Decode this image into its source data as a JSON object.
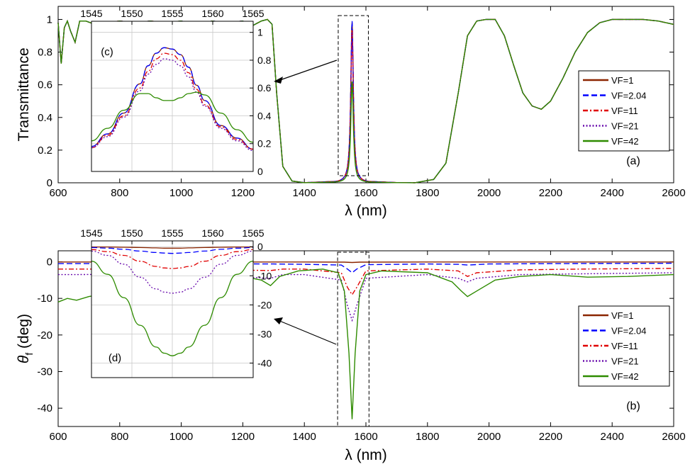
{
  "chart_data": [
    {
      "type": "line",
      "panel_label": "(a)",
      "ylabel": "Transmittance",
      "xlabel": "λ (nm)",
      "xlim": [
        600,
        2600
      ],
      "ylim": [
        0,
        1.08
      ],
      "xticks": [
        600,
        800,
        1000,
        1200,
        1400,
        1600,
        1800,
        2000,
        2200,
        2400,
        2600
      ],
      "yticks": [
        0,
        0.2,
        0.4,
        0.6,
        0.8,
        1
      ],
      "legend_position": "right",
      "series": [
        {
          "name": "VF=1",
          "color": "#8B2500",
          "dash": "solid",
          "peak": 0.98
        },
        {
          "name": "VF=2.04",
          "color": "#0000FF",
          "dash": "dashed",
          "peak": 0.99
        },
        {
          "name": "VF=11",
          "color": "#E00000",
          "dash": "dashdot",
          "peak": 0.94
        },
        {
          "name": "VF=21",
          "color": "#6A0DAD",
          "dash": "dotted",
          "peak": 0.92
        },
        {
          "name": "VF=42",
          "color": "#2E8B00",
          "dash": "solid",
          "peak": 0.62
        }
      ],
      "shared_curve": {
        "x": [
          600,
          610,
          620,
          630,
          640,
          655,
          670,
          690,
          720,
          760,
          800,
          850,
          900,
          950,
          1000,
          1050,
          1100,
          1150,
          1200,
          1230,
          1260,
          1280,
          1295,
          1310,
          1330,
          1360,
          1400,
          1500,
          1600,
          1700,
          1760,
          1820,
          1860,
          1900,
          1930,
          1960,
          1990,
          2020,
          2050,
          2080,
          2110,
          2140,
          2170,
          2200,
          2240,
          2280,
          2320,
          2360,
          2400,
          2450,
          2500,
          2550,
          2600
        ],
        "y": [
          0.98,
          0.73,
          0.95,
          0.99,
          0.93,
          0.86,
          0.99,
          0.99,
          0.97,
          0.98,
          0.99,
          0.98,
          0.99,
          0.98,
          0.99,
          0.97,
          0.99,
          0.98,
          0.99,
          0.96,
          0.99,
          1.0,
          0.97,
          0.55,
          0.1,
          0.01,
          0.0,
          0.0,
          0.0,
          0.0,
          0.0,
          0.02,
          0.12,
          0.55,
          0.9,
          0.99,
          1.0,
          1.0,
          0.9,
          0.72,
          0.55,
          0.47,
          0.45,
          0.5,
          0.64,
          0.8,
          0.92,
          0.98,
          1.0,
          1.0,
          1.0,
          0.99,
          0.97
        ]
      },
      "inset": {
        "label": "(c)",
        "xlim": [
          1545,
          1565
        ],
        "ylim": [
          0,
          1.08
        ],
        "xticks": [
          1545,
          1550,
          1555,
          1560,
          1565
        ],
        "yticks": [
          0,
          0.2,
          0.4,
          0.6,
          0.8,
          1
        ],
        "x": [
          1545,
          1547,
          1549,
          1551,
          1552,
          1553,
          1554,
          1555,
          1556,
          1557,
          1558,
          1559,
          1561,
          1563,
          1565
        ],
        "series": [
          {
            "name": "VF=1",
            "y": [
              0.18,
              0.27,
              0.42,
              0.63,
              0.76,
              0.85,
              0.89,
              0.88,
              0.84,
              0.75,
              0.62,
              0.51,
              0.33,
              0.24,
              0.16
            ]
          },
          {
            "name": "VF=2.04",
            "y": [
              0.18,
              0.27,
              0.42,
              0.63,
              0.76,
              0.85,
              0.89,
              0.88,
              0.84,
              0.75,
              0.62,
              0.51,
              0.33,
              0.24,
              0.16
            ]
          },
          {
            "name": "VF=11",
            "y": [
              0.17,
              0.26,
              0.4,
              0.6,
              0.72,
              0.81,
              0.85,
              0.84,
              0.8,
              0.71,
              0.59,
              0.48,
              0.32,
              0.23,
              0.16
            ]
          },
          {
            "name": "VF=21",
            "y": [
              0.17,
              0.25,
              0.39,
              0.58,
              0.7,
              0.77,
              0.81,
              0.8,
              0.76,
              0.68,
              0.57,
              0.47,
              0.31,
              0.22,
              0.15
            ]
          },
          {
            "name": "VF=42",
            "y": [
              0.22,
              0.31,
              0.44,
              0.56,
              0.56,
              0.53,
              0.51,
              0.51,
              0.53,
              0.56,
              0.57,
              0.55,
              0.42,
              0.3,
              0.21
            ]
          }
        ]
      }
    },
    {
      "type": "line",
      "panel_label": "(b)",
      "ylabel_main": "θ",
      "ylabel_sub": "f",
      "ylabel_unit": " (deg)",
      "xlabel": "λ (nm)",
      "xlim": [
        600,
        2600
      ],
      "ylim": [
        -45,
        3
      ],
      "xticks": [
        600,
        800,
        1000,
        1200,
        1400,
        1600,
        1800,
        2000,
        2200,
        2400,
        2600
      ],
      "yticks": [
        0,
        -10,
        -20,
        -30,
        -40
      ],
      "legend_position": "right",
      "series": [
        {
          "name": "VF=1",
          "color": "#8B2500",
          "dash": "solid",
          "x": [
            600,
            1000,
            1400,
            1530,
            1555,
            1580,
            1800,
            2200,
            2600
          ],
          "y": [
            -0.05,
            -0.05,
            -0.06,
            -0.1,
            -0.2,
            -0.1,
            -0.05,
            -0.05,
            -0.05
          ]
        },
        {
          "name": "VF=2.04",
          "color": "#0000FF",
          "dash": "dashed",
          "x": [
            600,
            1000,
            1300,
            1400,
            1520,
            1540,
            1555,
            1570,
            1600,
            1800,
            1900,
            1930,
            2000,
            2200,
            2600
          ],
          "y": [
            -0.5,
            -0.5,
            -0.6,
            -0.7,
            -0.9,
            -2.0,
            -3.0,
            -2.0,
            -0.8,
            -0.6,
            -0.7,
            -0.9,
            -0.6,
            -0.5,
            -0.4
          ]
        },
        {
          "name": "VF=11",
          "color": "#E00000",
          "dash": "dashdot",
          "x": [
            600,
            1000,
            1290,
            1330,
            1400,
            1520,
            1540,
            1555,
            1570,
            1600,
            1800,
            1900,
            1930,
            1960,
            2100,
            2300,
            2600
          ],
          "y": [
            -2.0,
            -2.0,
            -2.4,
            -2.0,
            -2.0,
            -3.0,
            -7.0,
            -9.0,
            -7.0,
            -2.5,
            -2.0,
            -2.5,
            -4.0,
            -3.0,
            -2.2,
            -2.0,
            -1.8
          ]
        },
        {
          "name": "VF=21",
          "color": "#6A0DAD",
          "dash": "dotted",
          "x": [
            600,
            1000,
            1290,
            1330,
            1400,
            1520,
            1540,
            1555,
            1570,
            1600,
            1800,
            1900,
            1930,
            1960,
            2100,
            2300,
            2600
          ],
          "y": [
            -3.5,
            -3.4,
            -4.5,
            -3.5,
            -3.5,
            -5.0,
            -12.0,
            -16.0,
            -12.0,
            -4.5,
            -3.5,
            -4.5,
            -5.5,
            -4.5,
            -3.5,
            -3.3,
            -3.0
          ]
        },
        {
          "name": "VF=42",
          "color": "#2E8B00",
          "dash": "solid",
          "x": [
            600,
            630,
            660,
            700,
            800,
            900,
            1000,
            1100,
            1200,
            1260,
            1290,
            1320,
            1380,
            1460,
            1510,
            1530,
            1545,
            1555,
            1565,
            1580,
            1600,
            1650,
            1800,
            1880,
            1910,
            1930,
            1960,
            2020,
            2100,
            2200,
            2320,
            2450,
            2600
          ],
          "y": [
            -11.0,
            -10.0,
            -10.5,
            -9.5,
            -8.0,
            -7.0,
            -6.0,
            -5.0,
            -4.0,
            -5.0,
            -6.5,
            -4.0,
            -2.5,
            -2.0,
            -3.0,
            -8.0,
            -25.0,
            -43.0,
            -25.0,
            -8.0,
            -3.5,
            -2.5,
            -3.0,
            -5.5,
            -8.0,
            -9.5,
            -8.0,
            -5.0,
            -4.0,
            -3.5,
            -4.2,
            -4.0,
            -3.5
          ]
        }
      ],
      "inset": {
        "label": "(d)",
        "xlim": [
          1545,
          1565
        ],
        "ylim": [
          -45,
          2
        ],
        "xticks": [
          1545,
          1550,
          1555,
          1560,
          1565
        ],
        "yticks": [
          0,
          -10,
          -20,
          -30,
          -40
        ],
        "x": [
          1545,
          1547,
          1549,
          1551,
          1553,
          1554,
          1555,
          1556,
          1557,
          1559,
          1561,
          1563,
          1565
        ],
        "series": [
          {
            "name": "VF=1",
            "y": [
              -0.1,
              -0.1,
              -0.2,
              -0.3,
              -0.4,
              -0.5,
              -0.5,
              -0.5,
              -0.4,
              -0.3,
              -0.2,
              -0.1,
              -0.1
            ]
          },
          {
            "name": "VF=2.04",
            "y": [
              -0.3,
              -0.5,
              -0.9,
              -1.5,
              -2.0,
              -2.2,
              -2.3,
              -2.2,
              -2.0,
              -1.5,
              -0.9,
              -0.5,
              -0.3
            ]
          },
          {
            "name": "VF=11",
            "y": [
              -1.0,
              -1.7,
              -3.0,
              -5.0,
              -6.8,
              -7.3,
              -7.5,
              -7.3,
              -6.8,
              -5.0,
              -3.0,
              -1.7,
              -1.0
            ]
          },
          {
            "name": "VF=21",
            "y": [
              -1.5,
              -3.0,
              -6.0,
              -10.5,
              -14.5,
              -15.6,
              -16.0,
              -15.6,
              -14.5,
              -10.5,
              -6.0,
              -3.0,
              -1.5
            ]
          },
          {
            "name": "VF=42",
            "y": [
              -5.0,
              -9.5,
              -17.5,
              -27.0,
              -34.5,
              -36.6,
              -37.5,
              -36.6,
              -34.5,
              -27.0,
              -17.5,
              -9.5,
              -5.0
            ]
          }
        ]
      }
    }
  ]
}
